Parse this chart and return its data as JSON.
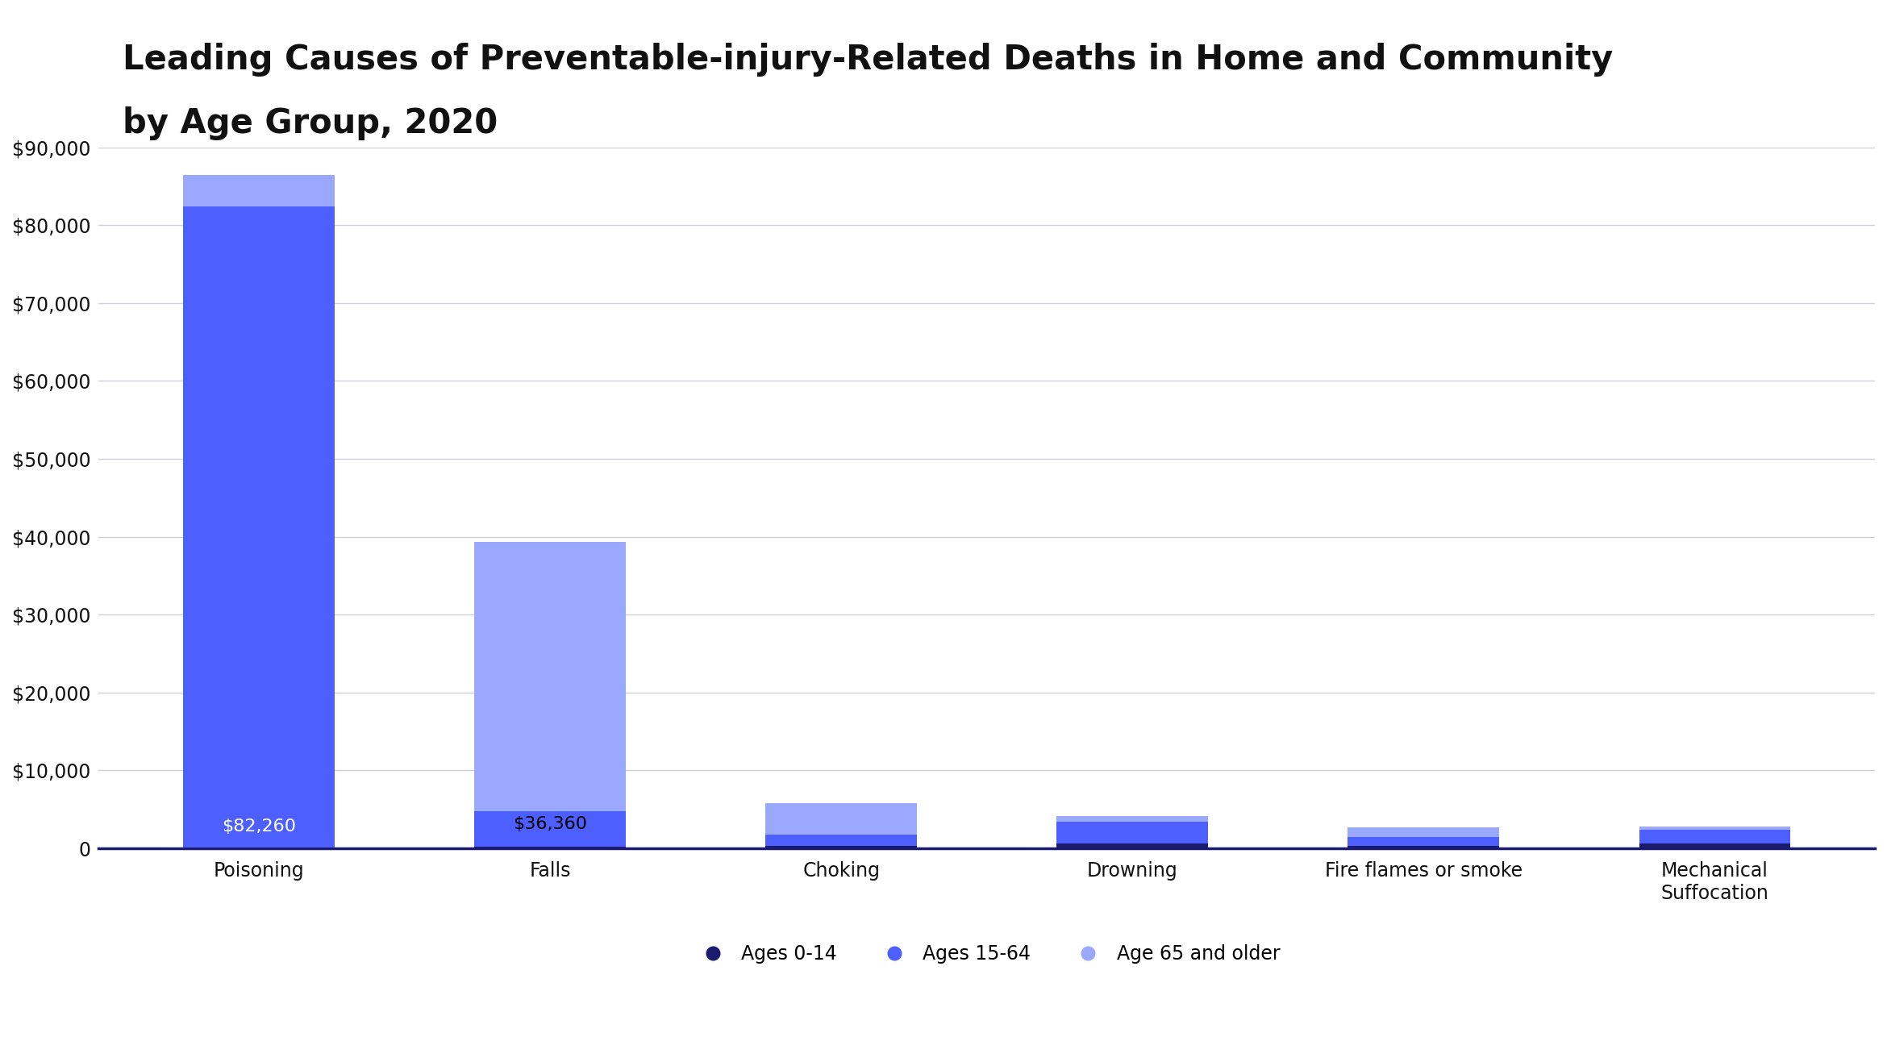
{
  "title_line1": "Leading Causes of Preventable-injury-Related Deaths in Home and Community",
  "title_line2": "by Age Group, 2020",
  "categories": [
    "Poisoning",
    "Falls",
    "Choking",
    "Drowning",
    "Fire flames or smoke",
    "Mechanical\nSuffocation"
  ],
  "age_groups": [
    "Ages 0-14",
    "Ages 15-64",
    "Age 65 and older"
  ],
  "colors": [
    "#1a1a6e",
    "#4d5fff",
    "#9aa8ff"
  ],
  "values": {
    "Ages 0-14": [
      150,
      250,
      350,
      600,
      300,
      600
    ],
    "Ages 15-64": [
      82260,
      4500,
      1400,
      2800,
      1200,
      1800
    ],
    "Age 65 and older": [
      4000,
      34600,
      4000,
      700,
      1200,
      350
    ]
  },
  "ylim": [
    0,
    90000
  ],
  "yticks": [
    0,
    10000,
    20000,
    30000,
    40000,
    50000,
    60000,
    70000,
    80000,
    90000
  ],
  "ytick_labels": [
    "0",
    "$10,000",
    "$20,000",
    "$30,000",
    "$40,000",
    "$50,000",
    "$60,000",
    "$70,000",
    "$80,000",
    "$90,000"
  ],
  "background_color": "#ffffff",
  "grid_color": "#d0d0d8",
  "title_color": "#111111",
  "title_fontsize": 30,
  "axis_label_fontsize": 17,
  "legend_fontsize": 17,
  "bar_label_fontsize": 16,
  "bar_width": 0.52
}
